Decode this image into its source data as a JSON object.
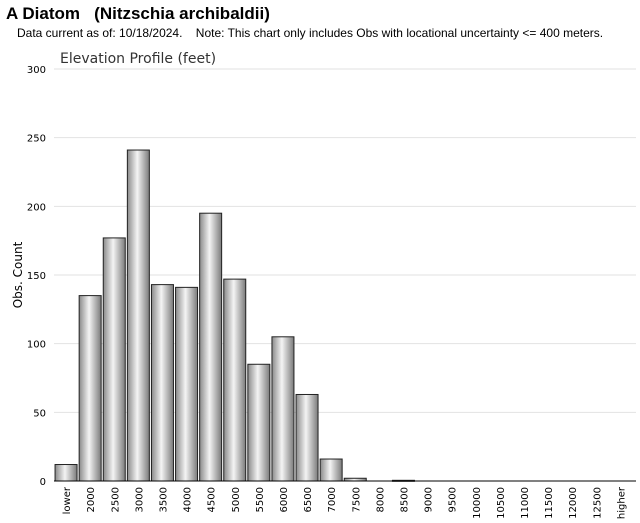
{
  "header": {
    "title": "A Diatom   (Nitzschia archibaldii)",
    "note": "Data current as of: 10/18/2024.    Note: This chart only includes Obs with locational uncertainty <= 400 meters."
  },
  "chart_data": {
    "type": "bar",
    "title": "Elevation Profile (feet)",
    "xlabel": "",
    "ylabel": "Obs. Count",
    "ylim": [
      0,
      300
    ],
    "yticks": [
      0,
      50,
      100,
      150,
      200,
      250,
      300
    ],
    "grid": true,
    "categories": [
      "lower",
      "2000",
      "2500",
      "3000",
      "3500",
      "4000",
      "4500",
      "5000",
      "5500",
      "6000",
      "6500",
      "7000",
      "7500",
      "8000",
      "8500",
      "9000",
      "9500",
      "10000",
      "10500",
      "11000",
      "11500",
      "12000",
      "12500",
      "higher"
    ],
    "values": [
      12,
      135,
      177,
      241,
      143,
      141,
      195,
      147,
      85,
      105,
      63,
      16,
      2,
      0,
      0.5,
      0,
      0,
      0,
      0,
      0,
      0,
      0,
      0,
      0
    ],
    "bar_color": "#bdbdbd"
  }
}
